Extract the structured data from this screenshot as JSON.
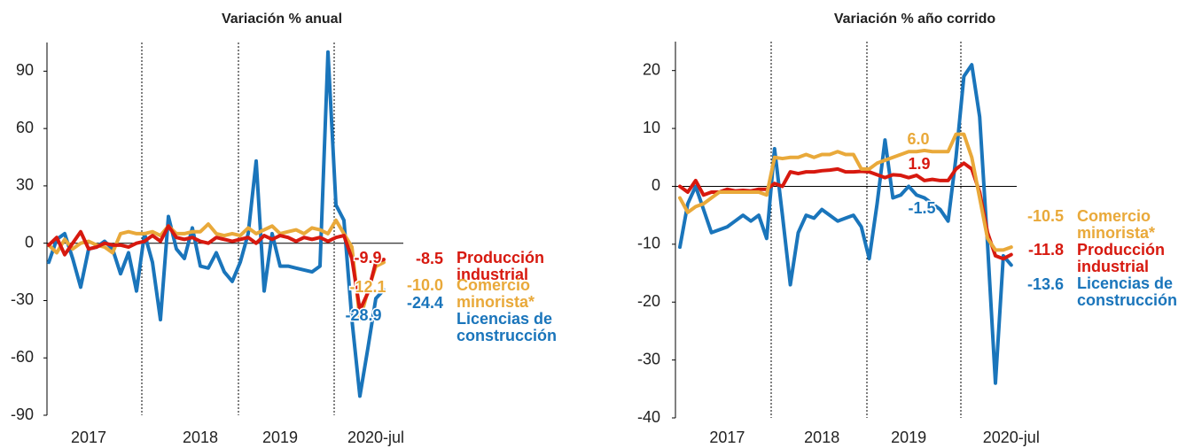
{
  "chart_data": [
    {
      "type": "line",
      "title": "Variación % anual",
      "categories": [
        null,
        null,
        null,
        null,
        null,
        "2017",
        null,
        null,
        null,
        null,
        null,
        null,
        null,
        null,
        null,
        null,
        null,
        null,
        null,
        "2018",
        null,
        null,
        null,
        null,
        null,
        null,
        null,
        null,
        null,
        "2019",
        null,
        null,
        null,
        null,
        null,
        null,
        null,
        null,
        null,
        null,
        null,
        "2020-jul",
        null
      ],
      "ylim": [
        -90,
        105
      ],
      "yticks": [
        -90,
        -60,
        -30,
        0,
        30,
        60,
        90
      ],
      "series": [
        {
          "name": "Producción industrial",
          "color": "#d7190f",
          "values": [
            -1,
            3,
            -6,
            0,
            6,
            -3,
            -2,
            0,
            -1,
            -1,
            -2,
            0,
            1,
            4,
            1,
            9,
            3,
            2,
            3,
            1,
            0,
            3,
            2,
            1,
            2,
            3,
            0,
            4,
            2,
            4,
            3,
            1,
            3,
            2,
            3,
            1,
            3,
            4,
            -8,
            -35,
            -26,
            -9.9,
            -8.5
          ],
          "value_labels": [
            null,
            null,
            null,
            null,
            null,
            null,
            null,
            null,
            null,
            null,
            null,
            null,
            null,
            null,
            null,
            null,
            null,
            null,
            null,
            null,
            null,
            null,
            null,
            null,
            null,
            null,
            null,
            null,
            null,
            null,
            null,
            null,
            null,
            null,
            null,
            null,
            null,
            null,
            null,
            null,
            null,
            "-9.9",
            "-8.5"
          ]
        },
        {
          "name": "Comercio minorista*",
          "color": "#e9a93a",
          "values": [
            -1,
            -5,
            2,
            -3,
            0,
            1,
            -1,
            -2,
            -5,
            5,
            6,
            5,
            5,
            6,
            4,
            9,
            5,
            5,
            6,
            6,
            10,
            5,
            4,
            5,
            4,
            8,
            5,
            7,
            9,
            5,
            6,
            7,
            5,
            8,
            7,
            5,
            12,
            5,
            -2,
            -40,
            -25,
            -12.1,
            -10
          ],
          "value_labels": [
            null,
            null,
            null,
            null,
            null,
            null,
            null,
            null,
            null,
            null,
            null,
            null,
            null,
            null,
            null,
            null,
            null,
            null,
            null,
            null,
            null,
            null,
            null,
            null,
            null,
            null,
            null,
            null,
            null,
            null,
            null,
            null,
            null,
            null,
            null,
            null,
            null,
            null,
            null,
            null,
            null,
            "-12.1",
            "-10.0"
          ]
        },
        {
          "name": "Licencias de construcción",
          "color": "#1a75bb",
          "values": [
            -10,
            2,
            5,
            -8,
            -23,
            -3,
            -2,
            1,
            -3,
            -16,
            -5,
            -25,
            5,
            -10,
            -40,
            14,
            -3,
            -8,
            8,
            -12,
            -13,
            -5,
            -15,
            -20,
            -10,
            5,
            43,
            -25,
            5,
            -12,
            -12,
            -13,
            -14,
            -15,
            -12,
            100,
            20,
            12,
            -40,
            -80,
            -55,
            -28.9,
            -24.4
          ],
          "value_labels": [
            null,
            null,
            null,
            null,
            null,
            null,
            null,
            null,
            null,
            null,
            null,
            null,
            null,
            null,
            null,
            null,
            null,
            null,
            null,
            null,
            null,
            null,
            null,
            null,
            null,
            null,
            null,
            null,
            null,
            null,
            null,
            null,
            null,
            null,
            null,
            null,
            null,
            null,
            null,
            null,
            null,
            "-28.9",
            "-24.4"
          ]
        }
      ]
    },
    {
      "type": "line",
      "title": "Variación % año corrido",
      "categories": [
        null,
        null,
        null,
        null,
        null,
        null,
        "2017",
        null,
        null,
        null,
        null,
        null,
        null,
        null,
        null,
        null,
        null,
        null,
        "2018",
        null,
        null,
        null,
        null,
        null,
        null,
        null,
        null,
        null,
        null,
        "2019",
        null,
        null,
        null,
        null,
        null,
        null,
        null,
        null,
        null,
        null,
        null,
        null,
        "2020-jul"
      ],
      "ylim": [
        -40,
        25
      ],
      "yticks": [
        -40,
        -30,
        -20,
        -10,
        0,
        10,
        20
      ],
      "series": [
        {
          "name": "Comercio minorista*",
          "color": "#e9a93a",
          "values": [
            -2,
            -4.5,
            -3.5,
            -3,
            -2,
            -1,
            -1,
            -1,
            -1,
            -1,
            -1,
            -1.5,
            5,
            4.8,
            5,
            5,
            5.5,
            5,
            5.5,
            5.5,
            6,
            5.5,
            5.5,
            3,
            3,
            4,
            4.5,
            5,
            5.5,
            6,
            6,
            6.2,
            6,
            6,
            6,
            9,
            9,
            5,
            -2,
            -9,
            -11,
            -11,
            -10.5
          ],
          "value_labels": [
            null,
            null,
            null,
            null,
            null,
            null,
            null,
            null,
            null,
            null,
            null,
            null,
            null,
            null,
            null,
            null,
            null,
            null,
            null,
            null,
            null,
            null,
            null,
            null,
            null,
            null,
            null,
            null,
            null,
            null,
            "6.0",
            null,
            null,
            null,
            null,
            null,
            null,
            null,
            null,
            null,
            null,
            null,
            "-10.5"
          ]
        },
        {
          "name": "Producción industrial",
          "color": "#d7190f",
          "values": [
            0,
            -1,
            1,
            -1.5,
            -1,
            -1,
            -0.5,
            -0.8,
            -0.7,
            -0.8,
            -0.5,
            -0.5,
            0.5,
            0,
            2.5,
            2.2,
            2.5,
            2.5,
            2.7,
            2.8,
            3,
            2.5,
            2.5,
            2.6,
            2.5,
            2,
            1.5,
            2,
            1.9,
            1.5,
            1.9,
            1,
            1.2,
            1,
            1,
            3,
            4,
            3,
            -1,
            -8,
            -12,
            -12.5,
            -11.8
          ],
          "value_labels": [
            null,
            null,
            null,
            null,
            null,
            null,
            null,
            null,
            null,
            null,
            null,
            null,
            null,
            null,
            null,
            null,
            null,
            null,
            null,
            null,
            null,
            null,
            null,
            null,
            null,
            null,
            null,
            null,
            null,
            null,
            "1.9",
            null,
            null,
            null,
            null,
            null,
            null,
            null,
            null,
            null,
            null,
            null,
            "-11.8"
          ]
        },
        {
          "name": "Licencias de construcción",
          "color": "#1a75bb",
          "values": [
            -10.5,
            -3,
            0,
            -4,
            -8,
            -7.5,
            -7,
            -6,
            -5,
            -6,
            -5,
            -9,
            6.5,
            -5,
            -17,
            -8,
            -5,
            -5.5,
            -4,
            -5,
            -6,
            -5.5,
            -5,
            -7,
            -12.5,
            -3,
            8,
            -2,
            -1.5,
            0,
            -1.5,
            -2,
            -3,
            -4,
            -6,
            5,
            19,
            21,
            12,
            -10,
            -34,
            -12,
            -13.6
          ],
          "value_labels": [
            null,
            null,
            null,
            null,
            null,
            null,
            null,
            null,
            null,
            null,
            null,
            null,
            null,
            null,
            null,
            null,
            null,
            null,
            null,
            null,
            null,
            null,
            null,
            null,
            null,
            null,
            null,
            null,
            null,
            null,
            "-1.5",
            null,
            null,
            null,
            null,
            null,
            null,
            null,
            null,
            null,
            null,
            null,
            "-13.6"
          ]
        }
      ]
    }
  ]
}
